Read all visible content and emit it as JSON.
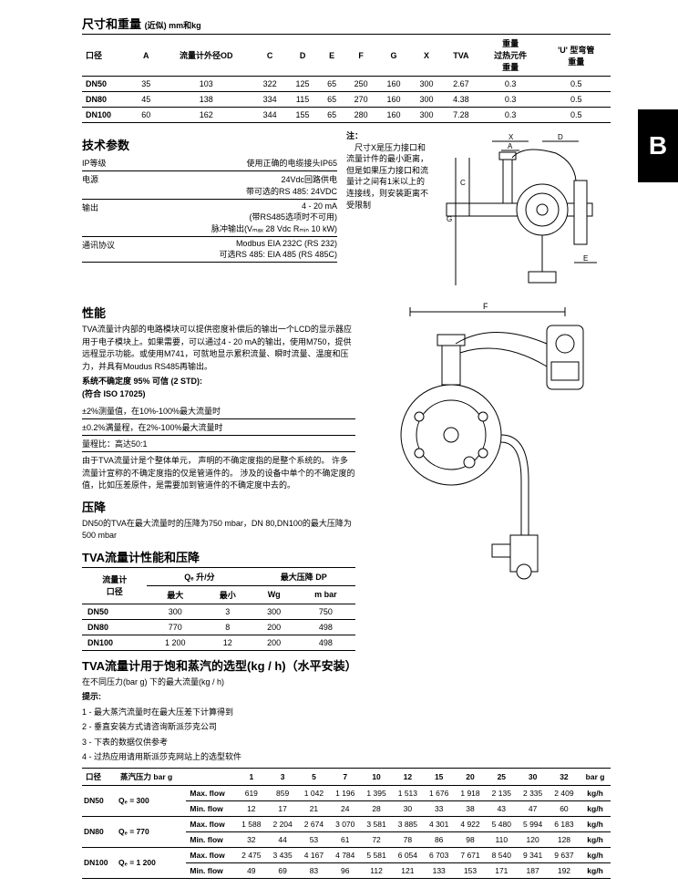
{
  "sideTab": "B",
  "dimensions": {
    "title": "尺寸和重量",
    "subtitle": "(近似) mm和kg",
    "headers": [
      "口径",
      "A",
      "流量计外径OD",
      "C",
      "D",
      "E",
      "F",
      "G",
      "X",
      "TVA",
      "重量\n过热元件\n重量",
      "'U' 型弯管\n重量"
    ],
    "rows": [
      [
        "DN50",
        "35",
        "103",
        "322",
        "125",
        "65",
        "250",
        "160",
        "300",
        "2.67",
        "0.3",
        "0.5"
      ],
      [
        "DN80",
        "45",
        "138",
        "334",
        "115",
        "65",
        "270",
        "160",
        "300",
        "4.38",
        "0.3",
        "0.5"
      ],
      [
        "DN100",
        "60",
        "162",
        "344",
        "155",
        "65",
        "280",
        "160",
        "300",
        "7.28",
        "0.3",
        "0.5"
      ]
    ]
  },
  "tech": {
    "title": "技术参数",
    "items": [
      {
        "label": "IP等级",
        "lines": [
          "使用正确的电缆接头IP65"
        ]
      },
      {
        "label": "电源",
        "lines": [
          "24Vdc回路供电",
          "带可选的RS 485: 24VDC"
        ]
      },
      {
        "label": "输出",
        "lines": [
          "4 - 20 mA",
          "(带RS485选项时不可用)",
          "脉冲输出(Vₘₐₓ 28 Vdc Rₘᵢₙ 10 kW)"
        ]
      },
      {
        "label": "通讯协议",
        "lines": [
          "Modbus EIA 232C (RS 232)",
          "可选RS 485: EIA 485 (RS 485C)"
        ]
      }
    ],
    "notesTitle": "注：",
    "notesBody": "尺寸X是压力接口和流量计件的最小距离，但是如果压力接口和流量计之间有1米以上的连接线，则安装距离不受限制"
  },
  "performance": {
    "title": "性能",
    "para1": "TVA流量计内部的电路模块可以提供密度补偿后的输出一个LCD的显示器应用于电子模块上。如果需要，可以通过4 - 20 mA的输出，使用M750，提供远程显示功能。或使用M741，可就地显示累积流量、瞬时流量、温度和压力，并具有Moudus RS485再输出。",
    "accHeading": "系统不确定度 95% 可信 (2 STD):\n(符合 ISO 17025)",
    "accRows": [
      "±2%测量值，在10%-100%最大流量时",
      "±0.2%满量程，在2%-100%最大流量时",
      "量程比：高达50:1"
    ],
    "para2": "由于TVA流量计是个整体单元，  声明的不确定度指的是整个系统的。 许多流量计宣称的不确定度指的仅是管道件的。  涉及的设备中单个的不确定度的值，比如压差原件，是需要加到管道件的不确定度中去的。"
  },
  "pressureDrop": {
    "title": "压降",
    "text": "DN50的TVA在最大流量时的压降为750 mbar，DN 80,DN100的最大压降为 500 mbar"
  },
  "perfTable": {
    "title": "TVA流量计性能和压降",
    "h1": [
      "流量计\n口径",
      "Qₑ 升/分",
      "最大压降 DP"
    ],
    "h2": [
      "最大",
      "最小",
      "Wg",
      "m bar"
    ],
    "rows": [
      [
        "DN50",
        "300",
        "3",
        "300",
        "750"
      ],
      [
        "DN80",
        "770",
        "8",
        "200",
        "498"
      ],
      [
        "DN100",
        "1 200",
        "12",
        "200",
        "498"
      ]
    ]
  },
  "selection": {
    "title": "TVA流量计用于饱和蒸汽的选型(kg / h)（水平安装）",
    "subtitle": "在不同压力(bar g) 下的最大流量(kg / h)",
    "hintsTitle": "提示:",
    "hints": [
      "1 - 最大蒸汽流量时在最大压差下计算得到",
      "2 - 垂直安装方式请咨询斯派莎克公司",
      "3 - 下表的数据仅供参考",
      "4 - 过热应用请用斯派莎克网站上的选型软件"
    ],
    "headers": [
      "口径",
      "蒸汽压力 bar g",
      "1",
      "3",
      "5",
      "7",
      "10",
      "12",
      "15",
      "20",
      "25",
      "30",
      "32",
      "bar g"
    ],
    "rows": [
      {
        "dn": "DN50",
        "q": "Qₑ = 300",
        "max": [
          "619",
          "859",
          "1 042",
          "1 196",
          "1 395",
          "1 513",
          "1 676",
          "1 918",
          "2 135",
          "2 335",
          "2 409"
        ],
        "min": [
          "12",
          "17",
          "21",
          "24",
          "28",
          "30",
          "33",
          "38",
          "43",
          "47",
          "60"
        ]
      },
      {
        "dn": "DN80",
        "q": "Qₑ = 770",
        "max": [
          "1 588",
          "2 204",
          "2 674",
          "3 070",
          "3 581",
          "3 885",
          "4 301",
          "4 922",
          "5 480",
          "5 994",
          "6 183"
        ],
        "min": [
          "32",
          "44",
          "53",
          "61",
          "72",
          "78",
          "86",
          "98",
          "110",
          "120",
          "128"
        ]
      },
      {
        "dn": "DN100",
        "q": "Qₑ = 1 200",
        "max": [
          "2 475",
          "3 435",
          "4 167",
          "4 784",
          "5 581",
          "6 054",
          "6 703",
          "7 671",
          "8 540",
          "9 341",
          "9 637"
        ],
        "min": [
          "49",
          "69",
          "83",
          "96",
          "112",
          "121",
          "133",
          "153",
          "171",
          "187",
          "192"
        ]
      }
    ],
    "maxLabel": "Max. flow",
    "minLabel": "Min. flow",
    "unit": "kg/h"
  },
  "diagram": {
    "labels": {
      "A": "A",
      "C": "C",
      "D": "D",
      "E": "E",
      "F": "F",
      "G": "G",
      "X": "X"
    },
    "stroke": "#000000",
    "fill": "#ffffff"
  }
}
